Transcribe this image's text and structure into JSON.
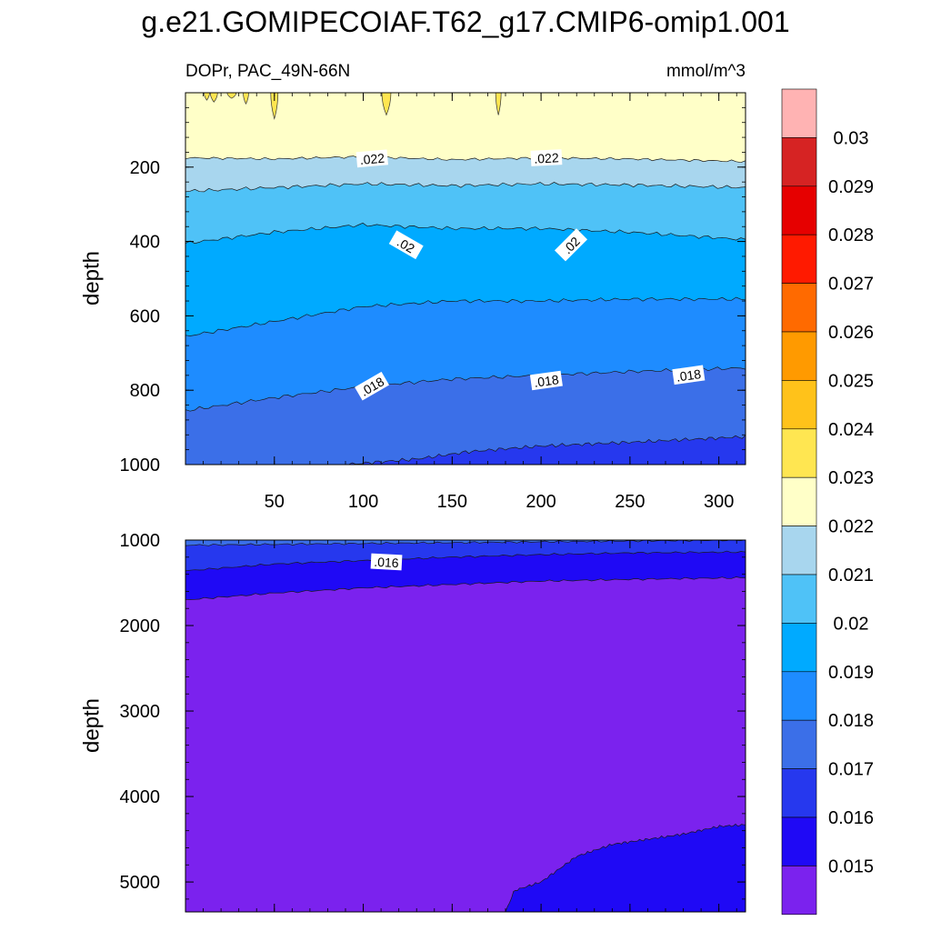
{
  "chart_data": [
    {
      "type": "contour",
      "title": "g.e21.GOMIPECOIAF.T62_g17.CMIP6-omip1.001",
      "left_string": "DOPr, PAC_49N-66N",
      "right_string": "mmol/m^3",
      "xlabel": "",
      "ylabel": "depth",
      "xlim": [
        0,
        315
      ],
      "ylim": [
        1000,
        0
      ],
      "x_ticks": [
        50,
        100,
        150,
        200,
        250,
        300
      ],
      "x_tick_labels": [
        "50",
        "100",
        "150",
        "200",
        "250",
        "300"
      ],
      "y_ticks": [
        200,
        400,
        600,
        800,
        1000
      ],
      "y_tick_labels": [
        "200",
        "400",
        "600",
        "800",
        "1000"
      ],
      "contour_lines": [
        {
          "level": 0.022,
          "x": [
            0,
            50,
            100,
            150,
            200,
            250,
            315
          ],
          "depth": [
            175,
            178,
            172,
            180,
            175,
            178,
            185
          ]
        },
        {
          "level": 0.021,
          "x": [
            0,
            50,
            100,
            150,
            200,
            250,
            315
          ],
          "depth": [
            265,
            255,
            245,
            250,
            245,
            248,
            255
          ]
        },
        {
          "level": 0.02,
          "x": [
            0,
            50,
            100,
            150,
            200,
            250,
            315
          ],
          "depth": [
            405,
            375,
            355,
            365,
            365,
            375,
            395
          ]
        },
        {
          "level": 0.019,
          "x": [
            0,
            50,
            100,
            150,
            200,
            250,
            315
          ],
          "depth": [
            655,
            615,
            575,
            560,
            560,
            555,
            555
          ]
        },
        {
          "level": 0.018,
          "x": [
            0,
            50,
            100,
            150,
            200,
            250,
            315
          ],
          "depth": [
            855,
            820,
            790,
            770,
            760,
            750,
            740
          ]
        },
        {
          "level": 0.017,
          "x": [
            90,
            130,
            160,
            200,
            250,
            315
          ],
          "depth": [
            1000,
            985,
            965,
            950,
            940,
            925
          ]
        }
      ],
      "inline_labels": [
        {
          "text": ".022",
          "x": 105,
          "depth": 178
        },
        {
          "text": ".022",
          "x": 203,
          "depth": 176
        },
        {
          "text": ".02",
          "x": 124,
          "depth": 410
        },
        {
          "text": ".02",
          "x": 217,
          "depth": 410
        },
        {
          "text": ".018",
          "x": 105,
          "depth": 790
        },
        {
          "text": ".018",
          "x": 203,
          "depth": 775
        },
        {
          "text": ".018",
          "x": 283,
          "depth": 760
        }
      ],
      "surface_spikes": [
        {
          "x": 12,
          "depth": 20
        },
        {
          "x": 16,
          "depth": 25
        },
        {
          "x": 26,
          "depth": 15
        },
        {
          "x": 34,
          "depth": 30
        },
        {
          "x": 50,
          "depth": 70
        },
        {
          "x": 113,
          "depth": 60
        },
        {
          "x": 176,
          "depth": 60
        }
      ]
    },
    {
      "type": "contour",
      "xlabel": "",
      "ylabel": "depth",
      "xlim": [
        0,
        315
      ],
      "ylim": [
        5350,
        1000
      ],
      "y_ticks": [
        1000,
        2000,
        3000,
        4000,
        5000
      ],
      "y_tick_labels": [
        "1000",
        "2000",
        "3000",
        "4000",
        "5000"
      ],
      "contour_lines": [
        {
          "level": 0.017,
          "x": [
            0,
            50,
            100,
            150,
            200,
            250,
            315
          ],
          "depth": [
            1060,
            1050,
            1040,
            1030,
            1020,
            1010,
            1000
          ]
        },
        {
          "level": 0.016,
          "x": [
            0,
            50,
            100,
            150,
            200,
            250,
            315
          ],
          "depth": [
            1360,
            1280,
            1240,
            1200,
            1170,
            1150,
            1140
          ]
        },
        {
          "level": 0.015,
          "x": [
            0,
            50,
            100,
            150,
            200,
            250,
            315
          ],
          "depth": [
            1700,
            1620,
            1560,
            1520,
            1480,
            1460,
            1440
          ]
        }
      ],
      "bottom_region": {
        "level": 0.015,
        "x": [
          180,
          185,
          200,
          220,
          240,
          260,
          280,
          300,
          315
        ],
        "depth": [
          5350,
          5100,
          5000,
          4700,
          4560,
          4500,
          4440,
          4350,
          4330
        ]
      },
      "inline_labels": [
        {
          "text": ".016",
          "x": 113,
          "depth": 1260
        }
      ]
    }
  ],
  "colorbar": {
    "labels": [
      "0.03",
      "0.029",
      "0.028",
      "0.027",
      "0.026",
      "0.025",
      "0.024",
      "0.023",
      "0.022",
      "0.021",
      "0.02",
      "0.019",
      "0.018",
      "0.017",
      "0.016",
      "0.015"
    ],
    "colors_top_to_bottom": [
      "#ffb3b3",
      "#d62323",
      "#e60000",
      "#ff1a00",
      "#ff6a00",
      "#ff9a00",
      "#ffc21a",
      "#ffe651",
      "#ffffc8",
      "#a8d6ee",
      "#4fc2f7",
      "#00aaff",
      "#1e8cff",
      "#3b6fe8",
      "#2638ee",
      "#1f09f5",
      "#7b22ee"
    ]
  },
  "colors": {
    "levels_high_to_low": [
      "#ffffc8",
      "#a8d6ee",
      "#4fc2f7",
      "#00aaff",
      "#1e8cff",
      "#3b6fe8",
      "#2638ee",
      "#1f09f5",
      "#7b22ee"
    ],
    "spike": "#ffe651"
  }
}
